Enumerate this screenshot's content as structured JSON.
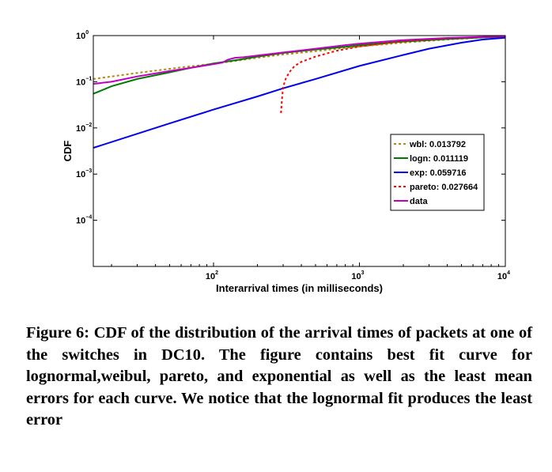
{
  "chart_data": {
    "type": "line",
    "xlabel": "Interarrival times (in milliseconds)",
    "ylabel": "CDF",
    "xscale": "log",
    "yscale": "log",
    "xlim": [
      15,
      10000
    ],
    "ylim": [
      1e-05,
      1
    ],
    "x_ticks": [
      {
        "base": "10",
        "exp": "2",
        "value": 100
      },
      {
        "base": "10",
        "exp": "3",
        "value": 1000
      },
      {
        "base": "10",
        "exp": "4",
        "value": 10000
      }
    ],
    "y_ticks": [
      {
        "base": "10",
        "exp": "0",
        "value": 1
      },
      {
        "base": "10",
        "exp": "−1",
        "value": 0.1
      },
      {
        "base": "10",
        "exp": "−2",
        "value": 0.01
      },
      {
        "base": "10",
        "exp": "−3",
        "value": 0.001
      },
      {
        "base": "10",
        "exp": "−4",
        "value": 0.0001
      }
    ],
    "grid": false,
    "legend_position": "right",
    "series": [
      {
        "name": "wbl: 0.013792",
        "color": "#b8860b",
        "dash": "dotted",
        "points": [
          [
            15,
            0.115
          ],
          [
            30,
            0.155
          ],
          [
            60,
            0.205
          ],
          [
            100,
            0.245
          ],
          [
            150,
            0.29
          ],
          [
            200,
            0.33
          ],
          [
            300,
            0.39
          ],
          [
            500,
            0.46
          ],
          [
            800,
            0.54
          ],
          [
            1000,
            0.58
          ],
          [
            2000,
            0.7
          ],
          [
            4000,
            0.82
          ],
          [
            7000,
            0.91
          ],
          [
            10000,
            0.95
          ]
        ]
      },
      {
        "name": "logn: 0.011119",
        "color": "#007a00",
        "dash": "solid",
        "points": [
          [
            15,
            0.055
          ],
          [
            20,
            0.08
          ],
          [
            30,
            0.115
          ],
          [
            50,
            0.16
          ],
          [
            70,
            0.2
          ],
          [
            100,
            0.25
          ],
          [
            150,
            0.3
          ],
          [
            200,
            0.35
          ],
          [
            300,
            0.42
          ],
          [
            500,
            0.5
          ],
          [
            800,
            0.57
          ],
          [
            1000,
            0.62
          ],
          [
            2000,
            0.74
          ],
          [
            4000,
            0.84
          ],
          [
            7000,
            0.91
          ],
          [
            10000,
            0.94
          ]
        ]
      },
      {
        "name": "exp: 0.059716",
        "color": "#0000ee",
        "dash": "solid",
        "points": [
          [
            15,
            0.0037
          ],
          [
            50,
            0.0125
          ],
          [
            100,
            0.025
          ],
          [
            200,
            0.048
          ],
          [
            300,
            0.072
          ],
          [
            500,
            0.115
          ],
          [
            1000,
            0.22
          ],
          [
            2000,
            0.38
          ],
          [
            3000,
            0.52
          ],
          [
            5000,
            0.7
          ],
          [
            7000,
            0.82
          ],
          [
            10000,
            0.9
          ]
        ]
      },
      {
        "name": "pareto: 0.027664",
        "color": "#ff0000",
        "dash": "dotted",
        "points": [
          [
            290,
            0.021
          ],
          [
            295,
            0.045
          ],
          [
            300,
            0.075
          ],
          [
            310,
            0.11
          ],
          [
            330,
            0.16
          ],
          [
            360,
            0.22
          ],
          [
            400,
            0.27
          ],
          [
            500,
            0.35
          ],
          [
            700,
            0.47
          ],
          [
            1000,
            0.58
          ],
          [
            2000,
            0.76
          ],
          [
            4000,
            0.87
          ],
          [
            7000,
            0.93
          ],
          [
            10000,
            0.97
          ]
        ]
      },
      {
        "name": "data",
        "color": "#c000c0",
        "dash": "solid",
        "points": [
          [
            15,
            0.09
          ],
          [
            20,
            0.1
          ],
          [
            30,
            0.13
          ],
          [
            50,
            0.17
          ],
          [
            70,
            0.2
          ],
          [
            100,
            0.24
          ],
          [
            115,
            0.26
          ],
          [
            125,
            0.3
          ],
          [
            140,
            0.33
          ],
          [
            160,
            0.34
          ],
          [
            200,
            0.37
          ],
          [
            300,
            0.43
          ],
          [
            500,
            0.52
          ],
          [
            800,
            0.62
          ],
          [
            1000,
            0.67
          ],
          [
            2000,
            0.8
          ],
          [
            4000,
            0.89
          ],
          [
            7000,
            0.94
          ],
          [
            10000,
            0.97
          ]
        ]
      }
    ]
  },
  "caption": "Figure 6: CDF of the distribution of the arrival times of packets at one of the switches in DC10. The figure contains best fit curve for lognormal,weibul, pareto, and exponential as well as the least mean errors for each curve. We notice that the lognormal fit produces the least error"
}
